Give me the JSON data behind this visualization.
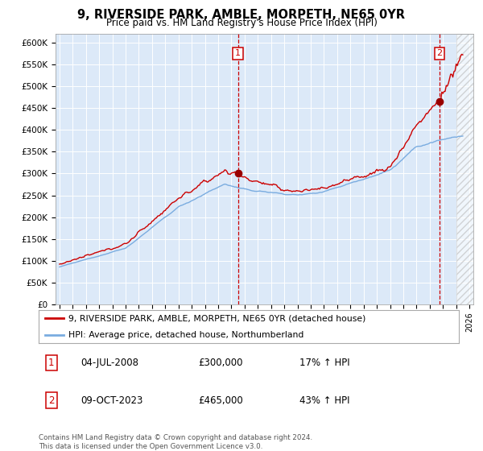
{
  "title": "9, RIVERSIDE PARK, AMBLE, MORPETH, NE65 0YR",
  "subtitle": "Price paid vs. HM Land Registry's House Price Index (HPI)",
  "legend_line1": "9, RIVERSIDE PARK, AMBLE, MORPETH, NE65 0YR (detached house)",
  "legend_line2": "HPI: Average price, detached house, Northumberland",
  "annotation1_date": "04-JUL-2008",
  "annotation1_price": "£300,000",
  "annotation1_hpi": "17% ↑ HPI",
  "annotation2_date": "09-OCT-2023",
  "annotation2_price": "£465,000",
  "annotation2_hpi": "43% ↑ HPI",
  "footer": "Contains HM Land Registry data © Crown copyright and database right 2024.\nThis data is licensed under the Open Government Licence v3.0.",
  "bg_color": "#dce9f8",
  "fig_color": "#ffffff",
  "ylim": [
    0,
    620000
  ],
  "yticks": [
    0,
    50000,
    100000,
    150000,
    200000,
    250000,
    300000,
    350000,
    400000,
    450000,
    500000,
    550000,
    600000
  ],
  "ytick_labels": [
    "£0",
    "£50K",
    "£100K",
    "£150K",
    "£200K",
    "£250K",
    "£300K",
    "£350K",
    "£400K",
    "£450K",
    "£500K",
    "£550K",
    "£600K"
  ],
  "sale1_x": 2008.5,
  "sale1_y": 300000,
  "sale2_x": 2023.75,
  "sale2_y": 465000,
  "hatch_start": 2025.0,
  "xmin": 1994.7,
  "xmax": 2026.3,
  "red_line_color": "#cc0000",
  "blue_line_color": "#7aace0",
  "marker_color": "#990000"
}
